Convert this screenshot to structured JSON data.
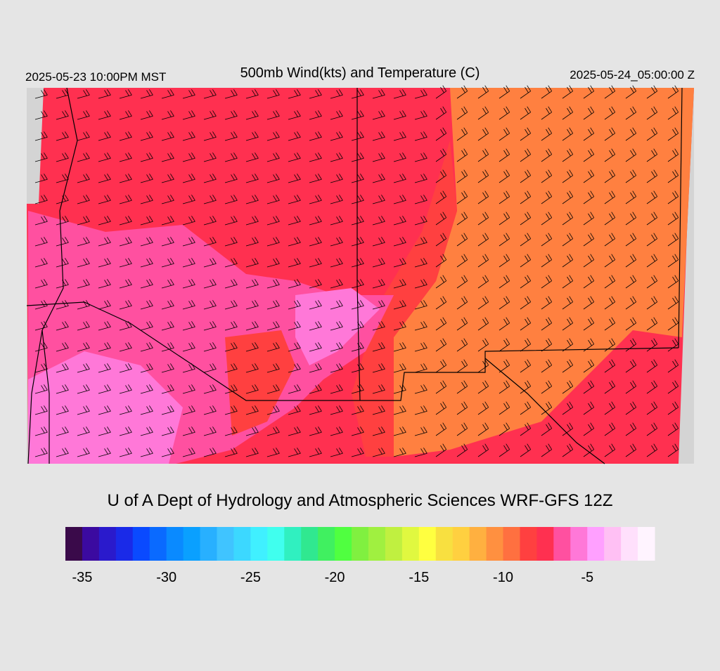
{
  "header": {
    "valid_local": "2025-05-23 10:00PM MST",
    "title": "500mb Wind(kts) and Temperature (C)",
    "valid_utc": "2025-05-24_05:00:00 Z"
  },
  "credit": "U of A Dept of Hydrology and Atmospheric Sciences WRF-GFS 12Z",
  "colorbar": {
    "range": [
      -36,
      -1
    ],
    "colors": [
      "#3a0a4a",
      "#3b0aa0",
      "#2a1acc",
      "#1a2ae8",
      "#0a4aff",
      "#0a6aff",
      "#0a8aff",
      "#0aa0ff",
      "#28b0ff",
      "#40c4ff",
      "#3cd8ff",
      "#40f0ff",
      "#40ffee",
      "#30f0c0",
      "#30e890",
      "#40f060",
      "#50ff40",
      "#80f040",
      "#a0f040",
      "#c0f040",
      "#e0f840",
      "#ffff40",
      "#f8e040",
      "#ffd040",
      "#ffb040",
      "#ff9040",
      "#ff7040",
      "#ff4040",
      "#ff3050",
      "#ff50a0",
      "#ff78d8",
      "#ffa0ff",
      "#ffc0f4",
      "#ffe0fc",
      "#fff4ff"
    ],
    "ticks": [
      -35,
      -30,
      -25,
      -20,
      -15,
      -10,
      -5
    ]
  }
}
